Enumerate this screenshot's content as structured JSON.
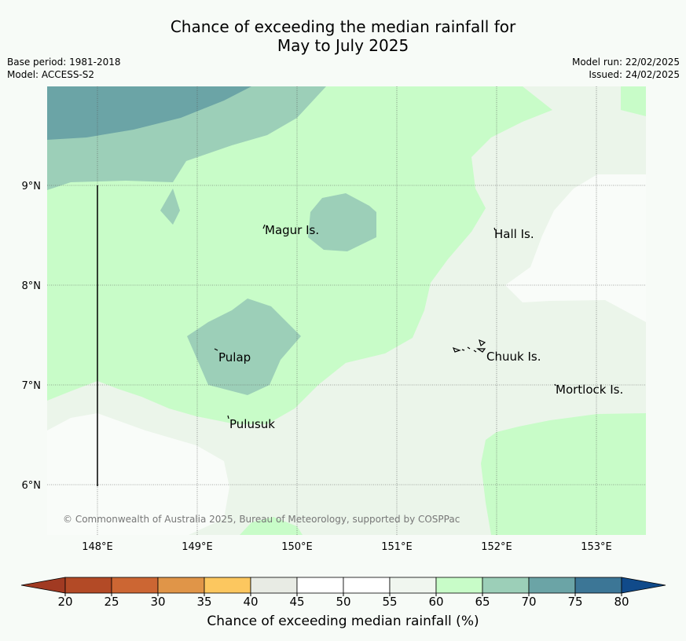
{
  "title": [
    "Chance of exceeding the median rainfall for",
    "May to July 2025"
  ],
  "meta_left": [
    "Base period: 1981-2018",
    "Model: ACCESS-S2"
  ],
  "meta_right": [
    "Model run: 22/02/2025",
    "Issued: 24/02/2025"
  ],
  "copyright": "© Commonwealth of Australia 2025, Bureau of Meteorology, supported by COSPPac",
  "x_ticks": [
    "148°E",
    "149°E",
    "150°E",
    "151°E",
    "152°E",
    "153°E"
  ],
  "y_ticks": [
    "9°N",
    "8°N",
    "7°N",
    "6°N"
  ],
  "places": [
    {
      "name": "Magur Is."
    },
    {
      "name": "Hall Is."
    },
    {
      "name": "Pulap"
    },
    {
      "name": "Chuuk Is."
    },
    {
      "name": "Mortlock Is."
    },
    {
      "name": "Pulusuk"
    }
  ],
  "colorbar": {
    "label": "Chance of exceeding median rainfall (%)",
    "ticks": [
      "20",
      "25",
      "30",
      "35",
      "40",
      "45",
      "50",
      "55",
      "60",
      "65",
      "70",
      "75",
      "80"
    ],
    "colors": [
      "#b34a26",
      "#cc6633",
      "#e09548",
      "#fcc75f",
      "#e8ebe4",
      "#ffffff",
      "#ffffff",
      "#f0f6ef",
      "#c8fcc8",
      "#9ccfb8",
      "#6ba4a6",
      "#3c7696"
    ],
    "under_color": "#a13a22",
    "over_color": "#104a8a"
  }
}
